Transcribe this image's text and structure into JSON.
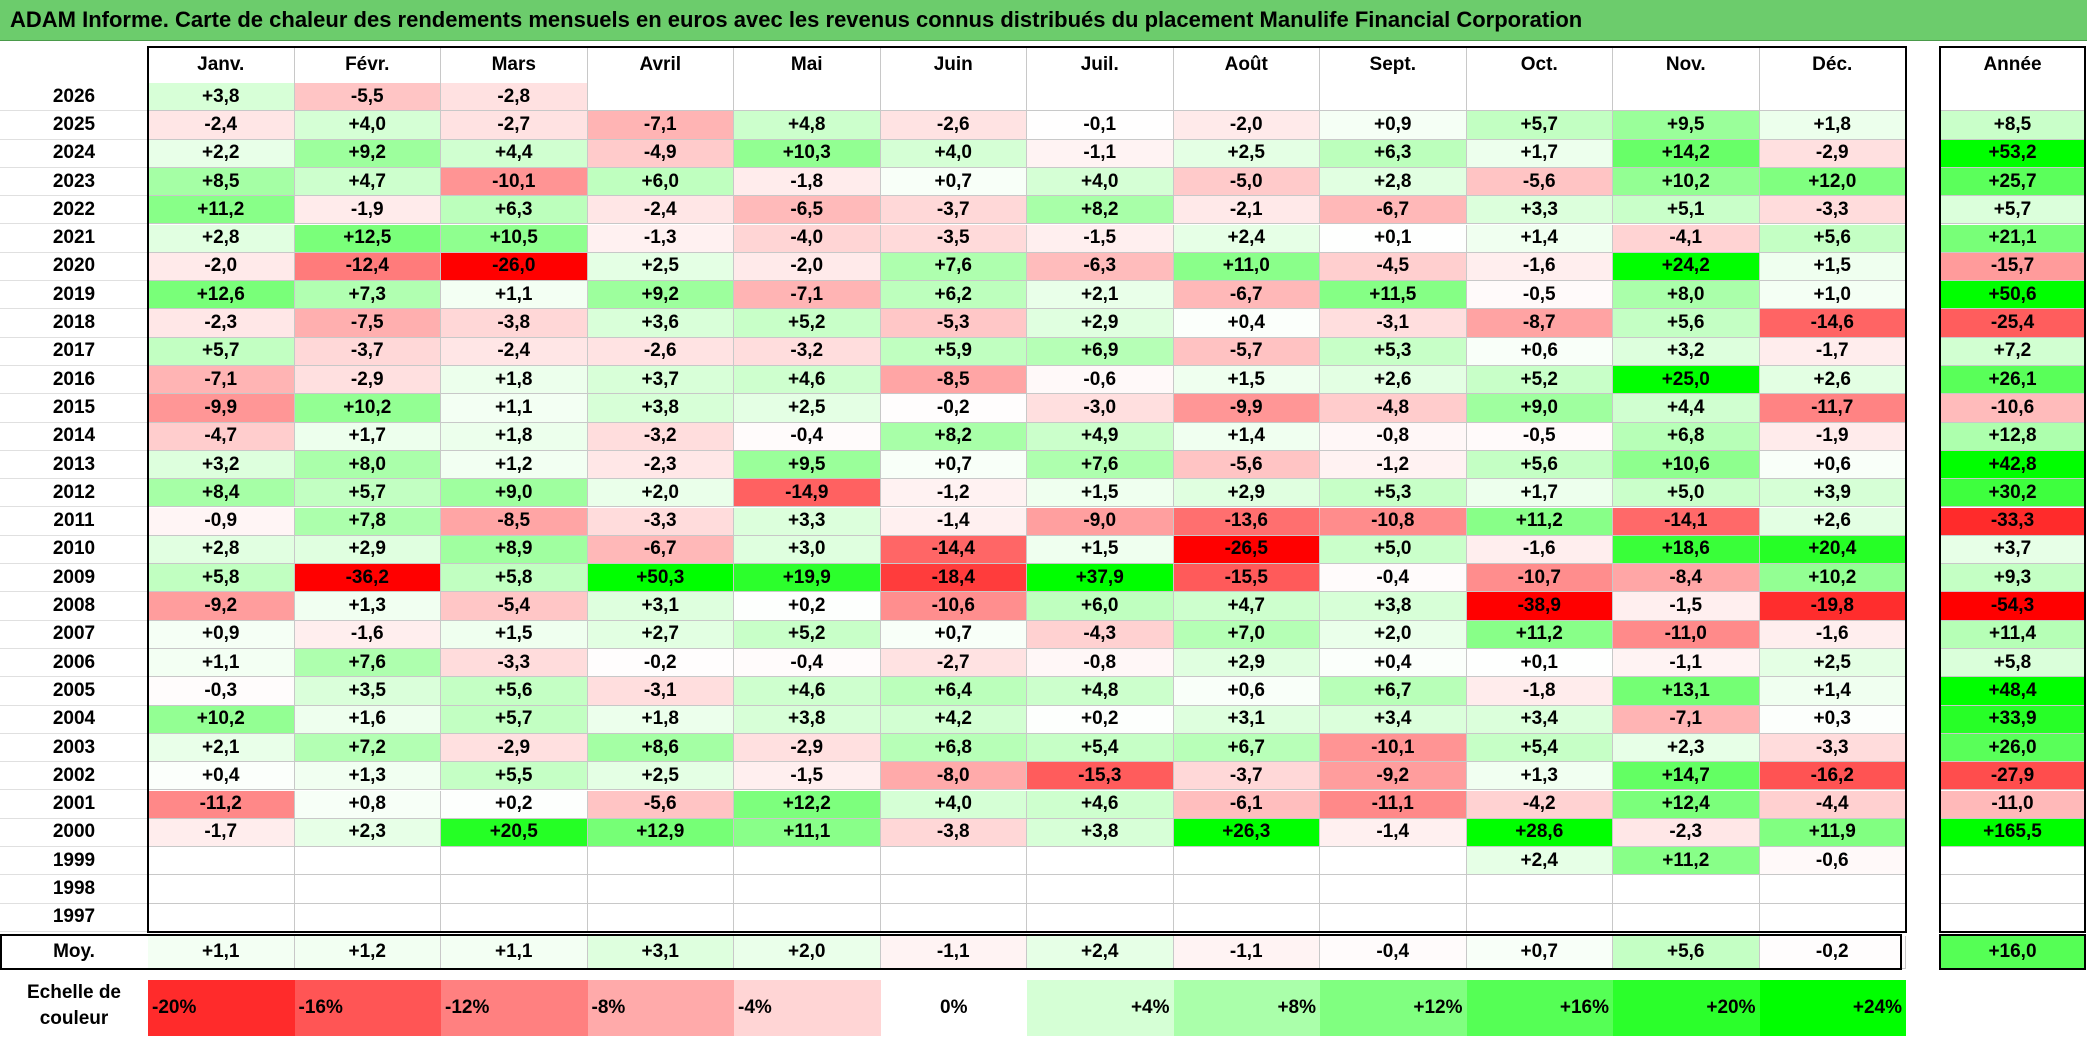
{
  "title": "ADAM Informe. Carte de chaleur des rendements mensuels en euros avec les revenus connus distribués du placement Manulife Financial Corporation",
  "chart_data": {
    "type": "heatmap",
    "title": "ADAM Informe. Carte de chaleur des rendements mensuels en euros avec les revenus connus distribués du placement Manulife Financial Corporation",
    "columns": [
      "Janv.",
      "Févr.",
      "Mars",
      "Avril",
      "Mai",
      "Juin",
      "Juil.",
      "Août",
      "Sept.",
      "Oct.",
      "Nov.",
      "Déc."
    ],
    "annual_header": "Année",
    "rows": [
      {
        "year": "2026",
        "values": [
          "+3,8",
          "-5,5",
          "-2,8",
          "",
          "",
          "",
          "",
          "",
          "",
          "",
          "",
          ""
        ],
        "annual": ""
      },
      {
        "year": "2025",
        "values": [
          "-2,4",
          "+4,0",
          "-2,7",
          "-7,1",
          "+4,8",
          "-2,6",
          "-0,1",
          "-2,0",
          "+0,9",
          "+5,7",
          "+9,5",
          "+1,8"
        ],
        "annual": "+8,5"
      },
      {
        "year": "2024",
        "values": [
          "+2,2",
          "+9,2",
          "+4,4",
          "-4,9",
          "+10,3",
          "+4,0",
          "-1,1",
          "+2,5",
          "+6,3",
          "+1,7",
          "+14,2",
          "-2,9"
        ],
        "annual": "+53,2"
      },
      {
        "year": "2023",
        "values": [
          "+8,5",
          "+4,7",
          "-10,1",
          "+6,0",
          "-1,8",
          "+0,7",
          "+4,0",
          "-5,0",
          "+2,8",
          "-5,6",
          "+10,2",
          "+12,0"
        ],
        "annual": "+25,7"
      },
      {
        "year": "2022",
        "values": [
          "+11,2",
          "-1,9",
          "+6,3",
          "-2,4",
          "-6,5",
          "-3,7",
          "+8,2",
          "-2,1",
          "-6,7",
          "+3,3",
          "+5,1",
          "-3,3"
        ],
        "annual": "+5,7"
      },
      {
        "year": "2021",
        "values": [
          "+2,8",
          "+12,5",
          "+10,5",
          "-1,3",
          "-4,0",
          "-3,5",
          "-1,5",
          "+2,4",
          "+0,1",
          "+1,4",
          "-4,1",
          "+5,6"
        ],
        "annual": "+21,1"
      },
      {
        "year": "2020",
        "values": [
          "-2,0",
          "-12,4",
          "-26,0",
          "+2,5",
          "-2,0",
          "+7,6",
          "-6,3",
          "+11,0",
          "-4,5",
          "-1,6",
          "+24,2",
          "+1,5"
        ],
        "annual": "-15,7"
      },
      {
        "year": "2019",
        "values": [
          "+12,6",
          "+7,3",
          "+1,1",
          "+9,2",
          "-7,1",
          "+6,2",
          "+2,1",
          "-6,7",
          "+11,5",
          "-0,5",
          "+8,0",
          "+1,0"
        ],
        "annual": "+50,6"
      },
      {
        "year": "2018",
        "values": [
          "-2,3",
          "-7,5",
          "-3,8",
          "+3,6",
          "+5,2",
          "-5,3",
          "+2,9",
          "+0,4",
          "-3,1",
          "-8,7",
          "+5,6",
          "-14,6"
        ],
        "annual": "-25,4"
      },
      {
        "year": "2017",
        "values": [
          "+5,7",
          "-3,7",
          "-2,4",
          "-2,6",
          "-3,2",
          "+5,9",
          "+6,9",
          "-5,7",
          "+5,3",
          "+0,6",
          "+3,2",
          "-1,7"
        ],
        "annual": "+7,2"
      },
      {
        "year": "2016",
        "values": [
          "-7,1",
          "-2,9",
          "+1,8",
          "+3,7",
          "+4,6",
          "-8,5",
          "-0,6",
          "+1,5",
          "+2,6",
          "+5,2",
          "+25,0",
          "+2,6"
        ],
        "annual": "+26,1"
      },
      {
        "year": "2015",
        "values": [
          "-9,9",
          "+10,2",
          "+1,1",
          "+3,8",
          "+2,5",
          "-0,2",
          "-3,0",
          "-9,9",
          "-4,8",
          "+9,0",
          "+4,4",
          "-11,7"
        ],
        "annual": "-10,6"
      },
      {
        "year": "2014",
        "values": [
          "-4,7",
          "+1,7",
          "+1,8",
          "-3,2",
          "-0,4",
          "+8,2",
          "+4,9",
          "+1,4",
          "-0,8",
          "-0,5",
          "+6,8",
          "-1,9"
        ],
        "annual": "+12,8"
      },
      {
        "year": "2013",
        "values": [
          "+3,2",
          "+8,0",
          "+1,2",
          "-2,3",
          "+9,5",
          "+0,7",
          "+7,6",
          "-5,6",
          "-1,2",
          "+5,6",
          "+10,6",
          "+0,6"
        ],
        "annual": "+42,8"
      },
      {
        "year": "2012",
        "values": [
          "+8,4",
          "+5,7",
          "+9,0",
          "+2,0",
          "-14,9",
          "-1,2",
          "+1,5",
          "+2,9",
          "+5,3",
          "+1,7",
          "+5,0",
          "+3,9"
        ],
        "annual": "+30,2"
      },
      {
        "year": "2011",
        "values": [
          "-0,9",
          "+7,8",
          "-8,5",
          "-3,3",
          "+3,3",
          "-1,4",
          "-9,0",
          "-13,6",
          "-10,8",
          "+11,2",
          "-14,1",
          "+2,6"
        ],
        "annual": "-33,3"
      },
      {
        "year": "2010",
        "values": [
          "+2,8",
          "+2,9",
          "+8,9",
          "-6,7",
          "+3,0",
          "-14,4",
          "+1,5",
          "-26,5",
          "+5,0",
          "-1,6",
          "+18,6",
          "+20,4"
        ],
        "annual": "+3,7"
      },
      {
        "year": "2009",
        "values": [
          "+5,8",
          "-36,2",
          "+5,8",
          "+50,3",
          "+19,9",
          "-18,4",
          "+37,9",
          "-15,5",
          "-0,4",
          "-10,7",
          "-8,4",
          "+10,2"
        ],
        "annual": "+9,3"
      },
      {
        "year": "2008",
        "values": [
          "-9,2",
          "+1,3",
          "-5,4",
          "+3,1",
          "+0,2",
          "-10,6",
          "+6,0",
          "+4,7",
          "+3,8",
          "-38,9",
          "-1,5",
          "-19,8"
        ],
        "annual": "-54,3"
      },
      {
        "year": "2007",
        "values": [
          "+0,9",
          "-1,6",
          "+1,5",
          "+2,7",
          "+5,2",
          "+0,7",
          "-4,3",
          "+7,0",
          "+2,0",
          "+11,2",
          "-11,0",
          "-1,6"
        ],
        "annual": "+11,4"
      },
      {
        "year": "2006",
        "values": [
          "+1,1",
          "+7,6",
          "-3,3",
          "-0,2",
          "-0,4",
          "-2,7",
          "-0,8",
          "+2,9",
          "+0,4",
          "+0,1",
          "-1,1",
          "+2,5"
        ],
        "annual": "+5,8"
      },
      {
        "year": "2005",
        "values": [
          "-0,3",
          "+3,5",
          "+5,6",
          "-3,1",
          "+4,6",
          "+6,4",
          "+4,8",
          "+0,6",
          "+6,7",
          "-1,8",
          "+13,1",
          "+1,4"
        ],
        "annual": "+48,4"
      },
      {
        "year": "2004",
        "values": [
          "+10,2",
          "+1,6",
          "+5,7",
          "+1,8",
          "+3,8",
          "+4,2",
          "+0,2",
          "+3,1",
          "+3,4",
          "+3,4",
          "-7,1",
          "+0,3"
        ],
        "annual": "+33,9"
      },
      {
        "year": "2003",
        "values": [
          "+2,1",
          "+7,2",
          "-2,9",
          "+8,6",
          "-2,9",
          "+6,8",
          "+5,4",
          "+6,7",
          "-10,1",
          "+5,4",
          "+2,3",
          "-3,3"
        ],
        "annual": "+26,0"
      },
      {
        "year": "2002",
        "values": [
          "+0,4",
          "+1,3",
          "+5,5",
          "+2,5",
          "-1,5",
          "-8,0",
          "-15,3",
          "-3,7",
          "-9,2",
          "+1,3",
          "+14,7",
          "-16,2"
        ],
        "annual": "-27,9"
      },
      {
        "year": "2001",
        "values": [
          "-11,2",
          "+0,8",
          "+0,2",
          "-5,6",
          "+12,2",
          "+4,0",
          "+4,6",
          "-6,1",
          "-11,1",
          "-4,2",
          "+12,4",
          "-4,4"
        ],
        "annual": "-11,0"
      },
      {
        "year": "2000",
        "values": [
          "-1,7",
          "+2,3",
          "+20,5",
          "+12,9",
          "+11,1",
          "-3,8",
          "+3,8",
          "+26,3",
          "-1,4",
          "+28,6",
          "-2,3",
          "+11,9"
        ],
        "annual": "+165,5"
      },
      {
        "year": "1999",
        "values": [
          "",
          "",
          "",
          "",
          "",
          "",
          "",
          "",
          "",
          "+2,4",
          "+11,2",
          "-0,6"
        ],
        "annual": ""
      },
      {
        "year": "1998",
        "values": [
          "",
          "",
          "",
          "",
          "",
          "",
          "",
          "",
          "",
          "",
          "",
          ""
        ],
        "annual": ""
      },
      {
        "year": "1997",
        "values": [
          "",
          "",
          "",
          "",
          "",
          "",
          "",
          "",
          "",
          "",
          "",
          ""
        ],
        "annual": ""
      }
    ],
    "average_label": "Moy.",
    "averages": [
      "+1,1",
      "+1,2",
      "+1,1",
      "+3,1",
      "+2,0",
      "-1,1",
      "+2,4",
      "-1,1",
      "-0,4",
      "+0,7",
      "+5,6",
      "-0,2"
    ],
    "average_annual": "+16,0",
    "scale_label": "Echelle de couleur",
    "scale": [
      {
        "label": "-20%",
        "value": -20
      },
      {
        "label": "-16%",
        "value": -16
      },
      {
        "label": "-12%",
        "value": -12
      },
      {
        "label": "-8%",
        "value": -8
      },
      {
        "label": "-4%",
        "value": -4
      },
      {
        "label": "0%",
        "value": 0
      },
      {
        "label": "+4%",
        "value": 4
      },
      {
        "label": "+8%",
        "value": 8
      },
      {
        "label": "+12%",
        "value": 12
      },
      {
        "label": "+16%",
        "value": 16
      },
      {
        "label": "+20%",
        "value": 20
      },
      {
        "label": "+24%",
        "value": 24
      }
    ],
    "colors": {
      "negative": "#ff0000",
      "neutral": "#ffffff",
      "positive": "#00ff00",
      "title_bar": "#6ccc6c"
    }
  }
}
